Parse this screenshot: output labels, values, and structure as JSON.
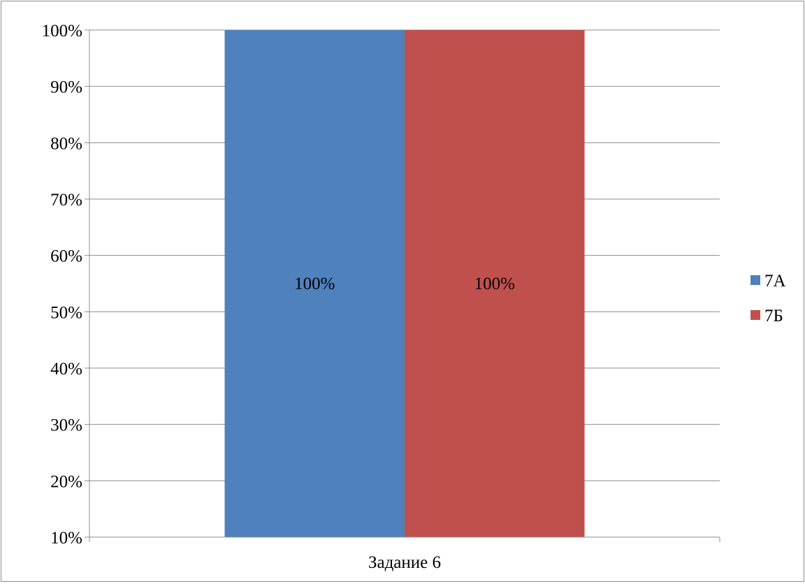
{
  "chart_data": {
    "type": "bar",
    "categories": [
      "Задание 6"
    ],
    "series": [
      {
        "name": "7А",
        "values": [
          100
        ],
        "color": "#4F81BD"
      },
      {
        "name": "7Б",
        "values": [
          100
        ],
        "color": "#C0504D"
      }
    ],
    "data_labels": [
      "100%",
      "100%"
    ],
    "y_ticks": [
      10,
      20,
      30,
      40,
      50,
      60,
      70,
      80,
      90,
      100
    ],
    "y_tick_labels": [
      "10%",
      "20%",
      "30%",
      "40%",
      "50%",
      "60%",
      "70%",
      "80%",
      "90%",
      "100%"
    ],
    "ylim": [
      10,
      100
    ],
    "grid": true,
    "legend_position": "right",
    "title": "",
    "xlabel": "",
    "ylabel": ""
  }
}
